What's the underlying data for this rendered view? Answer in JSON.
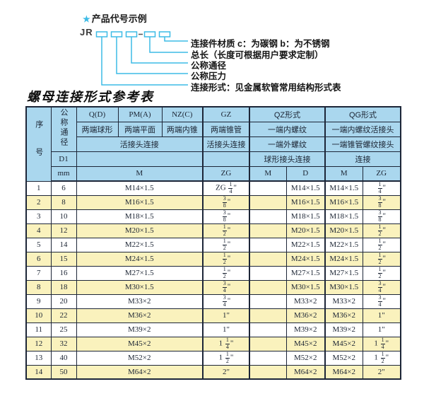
{
  "diagram": {
    "star_icon": "★",
    "title": "产品代号示例",
    "prefix": "JR",
    "labels": [
      "连接件材质  c：为碳钢  b：为不锈钢",
      "总长（长度可根据用户要求定制）",
      "公称通径",
      "公称压力",
      "连接形式：见金属软管常用结构形式表"
    ]
  },
  "table": {
    "title": "螺母连接形式参考表",
    "header": {
      "seq": "序号",
      "dn": "公称通径",
      "d1": "D1",
      "mm": "mm",
      "q": "Q(D)",
      "pm": "PM(A)",
      "nz": "NZ(C)",
      "gz": "GZ",
      "qz": "QZ形式",
      "qg": "QG形式",
      "q_desc": "两端球形",
      "pm_desc": "两端平面",
      "nz_desc": "两端内锥",
      "gz_desc": "两端锥管",
      "qz_desc": "一端内螺纹",
      "qg_desc": "一端内螺纹活接头",
      "union_conn": "活接头连接",
      "gz_conn": "活接头连接",
      "qz_conn2": "一端外螺纹",
      "qg_conn2": "一端锥管螺纹接头",
      "qz_conn3": "球形接头连接",
      "qg_conn3": "连接",
      "m": "M",
      "zg": "ZG",
      "qz_m": "M",
      "qz_d": "D",
      "qg_m": "M",
      "qg_zg": "ZG"
    },
    "rows": [
      [
        "1",
        "6",
        "M14×1.5",
        "ZG 1/4\"",
        "",
        "M14×1.5",
        "M14×1.5",
        "1/4\""
      ],
      [
        "2",
        "8",
        "M16×1.5",
        "3/8\"",
        "",
        "M16×1.5",
        "M16×1.5",
        "3/8\""
      ],
      [
        "3",
        "10",
        "M18×1.5",
        "3/8\"",
        "",
        "M18×1.5",
        "M18×1.5",
        "3/8\""
      ],
      [
        "4",
        "12",
        "M20×1.5",
        "1/2\"",
        "",
        "M20×1.5",
        "M20×1.5",
        "1/2\""
      ],
      [
        "5",
        "14",
        "M22×1.5",
        "1/2\"",
        "",
        "M22×1.5",
        "M22×1.5",
        "1/2\""
      ],
      [
        "6",
        "15",
        "M24×1.5",
        "1/2\"",
        "",
        "M24×1.5",
        "M24×1.5",
        "1/2\""
      ],
      [
        "7",
        "16",
        "M27×1.5",
        "1/2\"",
        "",
        "M27×1.5",
        "M27×1.5",
        "1/2\""
      ],
      [
        "8",
        "18",
        "M30×1.5",
        "3/4\"",
        "",
        "M30×1.5",
        "M30×1.5",
        "3/4\""
      ],
      [
        "9",
        "20",
        "M33×2",
        "3/4\"",
        "",
        "M33×2",
        "M33×2",
        "3/4\""
      ],
      [
        "10",
        "22",
        "M36×2",
        "1\"",
        "",
        "M36×2",
        "M36×2",
        "1\""
      ],
      [
        "11",
        "25",
        "M39×2",
        "1\"",
        "",
        "M39×2",
        "M39×2",
        "1\""
      ],
      [
        "12",
        "32",
        "M45×2",
        "1 1/4\"",
        "",
        "M45×2",
        "M45×2",
        "1 1/4\""
      ],
      [
        "13",
        "40",
        "M52×2",
        "1 1/2\"",
        "",
        "M52×2",
        "M52×2",
        "1 1/2\""
      ],
      [
        "14",
        "50",
        "M64×2",
        "2\"",
        "",
        "M64×2",
        "M64×2",
        "2\""
      ]
    ],
    "colors": {
      "header_blue": "#aad7ee",
      "row_yellow": "#faf2bd",
      "border": "#1d2638",
      "diagram_cyan": "#3dbbe6"
    }
  }
}
